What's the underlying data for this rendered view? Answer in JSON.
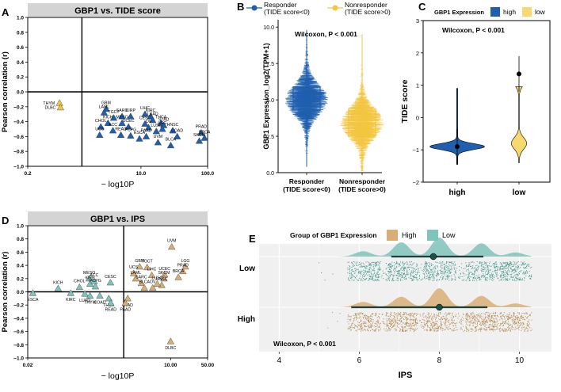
{
  "colors": {
    "blue": "#1f5fae",
    "blue_light": "#4f8fd0",
    "yellow": "#f3c640",
    "yellow_light": "#f7d96f",
    "tan": "#d9ae76",
    "teal": "#7fc3ba",
    "strip_gray": "#d4d4d4"
  },
  "chart_data": [
    {
      "panel": "A",
      "type": "scatter",
      "title": "GBP1 vs. TIDE score",
      "ylabel": "Pearson correlation (r)",
      "xlabel": "− log10P",
      "xscale": "log",
      "xlim": [
        0.2,
        100
      ],
      "ylim": [
        -1.0,
        1.0
      ],
      "xticks": [
        "0.2",
        "10.0",
        "100.0"
      ],
      "yticks": [
        "1.0",
        "0.8",
        "0.6",
        "0.4",
        "0.2",
        "0.0",
        "−0.2",
        "−0.4",
        "−0.6",
        "−0.8",
        "−1.0"
      ],
      "threshold_x": 1.3,
      "points": [
        {
          "label": "THYM",
          "x": 0.6,
          "y": -0.15,
          "group": "yellow"
        },
        {
          "label": "DLBC",
          "x": 0.62,
          "y": -0.21,
          "group": "yellow"
        },
        {
          "label": "GBM",
          "x": 3.0,
          "y": -0.23,
          "group": "blue"
        },
        {
          "label": "LAML",
          "x": 2.8,
          "y": -0.28,
          "group": "blue"
        },
        {
          "label": "TGCT",
          "x": 3.9,
          "y": -0.35,
          "group": "blue"
        },
        {
          "label": "SARC",
          "x": 5.2,
          "y": -0.33,
          "group": "blue"
        },
        {
          "label": "KIRP",
          "x": 7.0,
          "y": -0.33,
          "group": "blue"
        },
        {
          "label": "LIHC",
          "x": 11.5,
          "y": -0.3,
          "group": "blue"
        },
        {
          "label": "KIRC",
          "x": 14.0,
          "y": -0.33,
          "group": "blue"
        },
        {
          "label": "LUAD",
          "x": 15.0,
          "y": -0.38,
          "group": "blue"
        },
        {
          "label": "THCA",
          "x": 20.0,
          "y": -0.42,
          "group": "blue"
        },
        {
          "label": "STAD",
          "x": 22.0,
          "y": -0.45,
          "group": "blue"
        },
        {
          "label": "KICH",
          "x": 3.2,
          "y": -0.42,
          "group": "blue"
        },
        {
          "label": "MESO",
          "x": 5.2,
          "y": -0.42,
          "group": "blue"
        },
        {
          "label": "CESC",
          "x": 11.5,
          "y": -0.43,
          "group": "blue"
        },
        {
          "label": "LGG",
          "x": 21.0,
          "y": -0.5,
          "group": "blue"
        },
        {
          "label": "CHOL",
          "x": 2.5,
          "y": -0.47,
          "group": "blue"
        },
        {
          "label": "UCEC",
          "x": 6.5,
          "y": -0.47,
          "group": "blue"
        },
        {
          "label": "OV",
          "x": 13.0,
          "y": -0.48,
          "group": "blue"
        },
        {
          "label": "ACC",
          "x": 3.8,
          "y": -0.52,
          "group": "blue"
        },
        {
          "label": "HNSC",
          "x": 30.0,
          "y": -0.52,
          "group": "blue"
        },
        {
          "label": "LUSC",
          "x": 17.0,
          "y": -0.53,
          "group": "blue"
        },
        {
          "label": "PRAD",
          "x": 80.0,
          "y": -0.55,
          "group": "blue"
        },
        {
          "label": "UCS",
          "x": 2.4,
          "y": -0.58,
          "group": "blue"
        },
        {
          "label": "READ",
          "x": 5.0,
          "y": -0.58,
          "group": "blue"
        },
        {
          "label": "PCPG",
          "x": 7.0,
          "y": -0.59,
          "group": "blue"
        },
        {
          "label": "PAAD",
          "x": 12.0,
          "y": -0.6,
          "group": "blue"
        },
        {
          "label": "ESCA",
          "x": 9.5,
          "y": -0.63,
          "group": "blue"
        },
        {
          "label": "COAD",
          "x": 35.0,
          "y": -0.6,
          "group": "blue"
        },
        {
          "label": "BRCA",
          "x": 90.0,
          "y": -0.62,
          "group": "blue"
        },
        {
          "label": "SKCM",
          "x": 75.0,
          "y": -0.66,
          "group": "blue"
        },
        {
          "label": "UVM",
          "x": 18.0,
          "y": -0.68,
          "group": "blue"
        },
        {
          "label": "BLCA",
          "x": 28.0,
          "y": -0.72,
          "group": "blue"
        }
      ]
    },
    {
      "panel": "B",
      "type": "box",
      "ylabel": "GBP1 Expression_log2(TPM+1)",
      "ylim": [
        0,
        10.5
      ],
      "yticks": [
        "0.0",
        "2.5",
        "5.0",
        "7.5",
        "10.0"
      ],
      "annotation": "Wilcoxon,  P < 0.001",
      "legend": [
        "Responder\n(TIDE score<0)",
        "Nonresponder\n(TIDE score>0)"
      ],
      "categories": [
        "Responder\n(TIDE score<0)",
        "Nonresponder\n(TIDE score>0)"
      ],
      "series": [
        {
          "name": "Responder (TIDE score<0)",
          "min": 0.4,
          "q1": 4.3,
          "median": 5.0,
          "q3": 5.9,
          "max": 9.8
        },
        {
          "name": "Nonresponder (TIDE score>0)",
          "min": 0.1,
          "q1": 2.5,
          "median": 3.4,
          "q3": 4.4,
          "max": 9.5
        }
      ]
    },
    {
      "panel": "C",
      "type": "violin",
      "ylabel": "TIDE score",
      "ylim": [
        -2,
        3
      ],
      "yticks": [
        "3",
        "2",
        "1",
        "0",
        "−1",
        "−2"
      ],
      "annotation": "Wilcoxon,  P < 0.001",
      "legend_title": "GBP1 Expression",
      "legend": [
        "high",
        "low"
      ],
      "categories": [
        "high",
        "low"
      ],
      "series": [
        {
          "name": "high",
          "modes": [
            -0.9,
            1.5
          ],
          "weights": [
            1.0,
            0.35
          ],
          "mean": -0.9
        },
        {
          "name": "low",
          "modes": [
            1.3,
            -0.8
          ],
          "weights": [
            0.9,
            0.55
          ],
          "mean": 1.35
        }
      ]
    },
    {
      "panel": "D",
      "type": "scatter",
      "title": "GBP1 vs. IPS",
      "ylabel": "Pearson correlation (r)",
      "xlabel": "− log10P",
      "xscale": "log",
      "xlim": [
        0.02,
        50
      ],
      "ylim": [
        -1.0,
        1.0
      ],
      "xticks": [
        "0.02",
        "10.00",
        "50.00"
      ],
      "yticks": [
        "1.0",
        "0.8",
        "0.6",
        "0.4",
        "0.2",
        "0.0",
        "−0.2",
        "−0.4",
        "−0.6",
        "−0.8",
        "−1.0"
      ],
      "threshold_x": 1.3,
      "points": [
        {
          "label": "UVM",
          "x": 10.5,
          "y": 0.68,
          "group": "tan"
        },
        {
          "label": "GBM",
          "x": 2.6,
          "y": 0.38,
          "group": "tan"
        },
        {
          "label": "TGCT",
          "x": 3.6,
          "y": 0.37,
          "group": "tan"
        },
        {
          "label": "UCS",
          "x": 2.0,
          "y": 0.28,
          "group": "tan"
        },
        {
          "label": "LIHC",
          "x": 4.4,
          "y": 0.25,
          "group": "tan"
        },
        {
          "label": "UCEC",
          "x": 7.7,
          "y": 0.26,
          "group": "tan"
        },
        {
          "label": "LGG",
          "x": 19.0,
          "y": 0.38,
          "group": "tan"
        },
        {
          "label": "PRAD",
          "x": 17.0,
          "y": 0.31,
          "group": "tan"
        },
        {
          "label": "LAML",
          "x": 2.2,
          "y": 0.2,
          "group": "tan"
        },
        {
          "label": "SKCM",
          "x": 7.5,
          "y": 0.2,
          "group": "tan"
        },
        {
          "label": "BRCA",
          "x": 14.0,
          "y": 0.22,
          "group": "tan"
        },
        {
          "label": "SARC",
          "x": 2.8,
          "y": 0.13,
          "group": "tan"
        },
        {
          "label": "BLCA",
          "x": 3.2,
          "y": 0.06,
          "group": "tan"
        },
        {
          "label": "OV",
          "x": 4.6,
          "y": 0.06,
          "group": "tan"
        },
        {
          "label": "HNSC",
          "x": 6.8,
          "y": 0.1,
          "group": "tan"
        },
        {
          "label": "LUSC",
          "x": 5.6,
          "y": 0.12,
          "group": "tan"
        },
        {
          "label": "STAD",
          "x": 1.55,
          "y": -0.1,
          "group": "tan"
        },
        {
          "label": "PAAD",
          "x": 1.4,
          "y": -0.17,
          "group": "tan"
        },
        {
          "label": "DLBC",
          "x": 10.0,
          "y": -0.75,
          "group": "tan"
        },
        {
          "label": "ESCA",
          "x": 0.025,
          "y": -0.02,
          "group": "teal"
        },
        {
          "label": "KICH",
          "x": 0.075,
          "y": 0.05,
          "group": "teal"
        },
        {
          "label": "KIRC",
          "x": 0.13,
          "y": -0.02,
          "group": "teal"
        },
        {
          "label": "CHOL",
          "x": 0.19,
          "y": 0.07,
          "group": "teal"
        },
        {
          "label": "LUAD",
          "x": 0.24,
          "y": -0.03,
          "group": "teal"
        },
        {
          "label": "MESO",
          "x": 0.29,
          "y": 0.2,
          "group": "teal"
        },
        {
          "label": "KIRP",
          "x": 0.3,
          "y": 0.12,
          "group": "teal"
        },
        {
          "label": "ACC",
          "x": 0.36,
          "y": 0.16,
          "group": "teal"
        },
        {
          "label": "PCPG",
          "x": 0.38,
          "y": 0.08,
          "group": "teal"
        },
        {
          "label": "CESC",
          "x": 0.73,
          "y": 0.14,
          "group": "teal"
        },
        {
          "label": "THYM",
          "x": 0.3,
          "y": -0.06,
          "group": "teal"
        },
        {
          "label": "COAD",
          "x": 0.46,
          "y": -0.06,
          "group": "teal"
        },
        {
          "label": "THCA",
          "x": 0.68,
          "y": -0.1,
          "group": "teal"
        },
        {
          "label": "READ",
          "x": 0.74,
          "y": -0.17,
          "group": "teal"
        }
      ]
    },
    {
      "panel": "E",
      "type": "raincloud",
      "xlabel": "IPS",
      "xlim": [
        3.5,
        10.8
      ],
      "xticks": [
        "4",
        "6",
        "8",
        "10"
      ],
      "legend_title": "Group of GBP1 Expression",
      "legend": [
        "High",
        "Low"
      ],
      "annotation": "Wilcoxon,  P < 0.001",
      "categories": [
        "Low",
        "High"
      ],
      "series": [
        {
          "name": "Low",
          "mean": 7.85,
          "lo": 6.8,
          "hi": 9.1,
          "modes": [
            [
              6.1,
              0.28
            ],
            [
              7.05,
              0.75
            ],
            [
              8.0,
              1.0
            ],
            [
              9.05,
              0.7
            ],
            [
              9.9,
              0.22
            ]
          ]
        },
        {
          "name": "High",
          "mean": 8.0,
          "lo": 5.8,
          "hi": 9.2,
          "modes": [
            [
              6.1,
              0.28
            ],
            [
              7.05,
              0.55
            ],
            [
              8.0,
              1.0
            ],
            [
              9.05,
              0.6
            ],
            [
              9.9,
              0.2
            ]
          ]
        }
      ]
    }
  ]
}
